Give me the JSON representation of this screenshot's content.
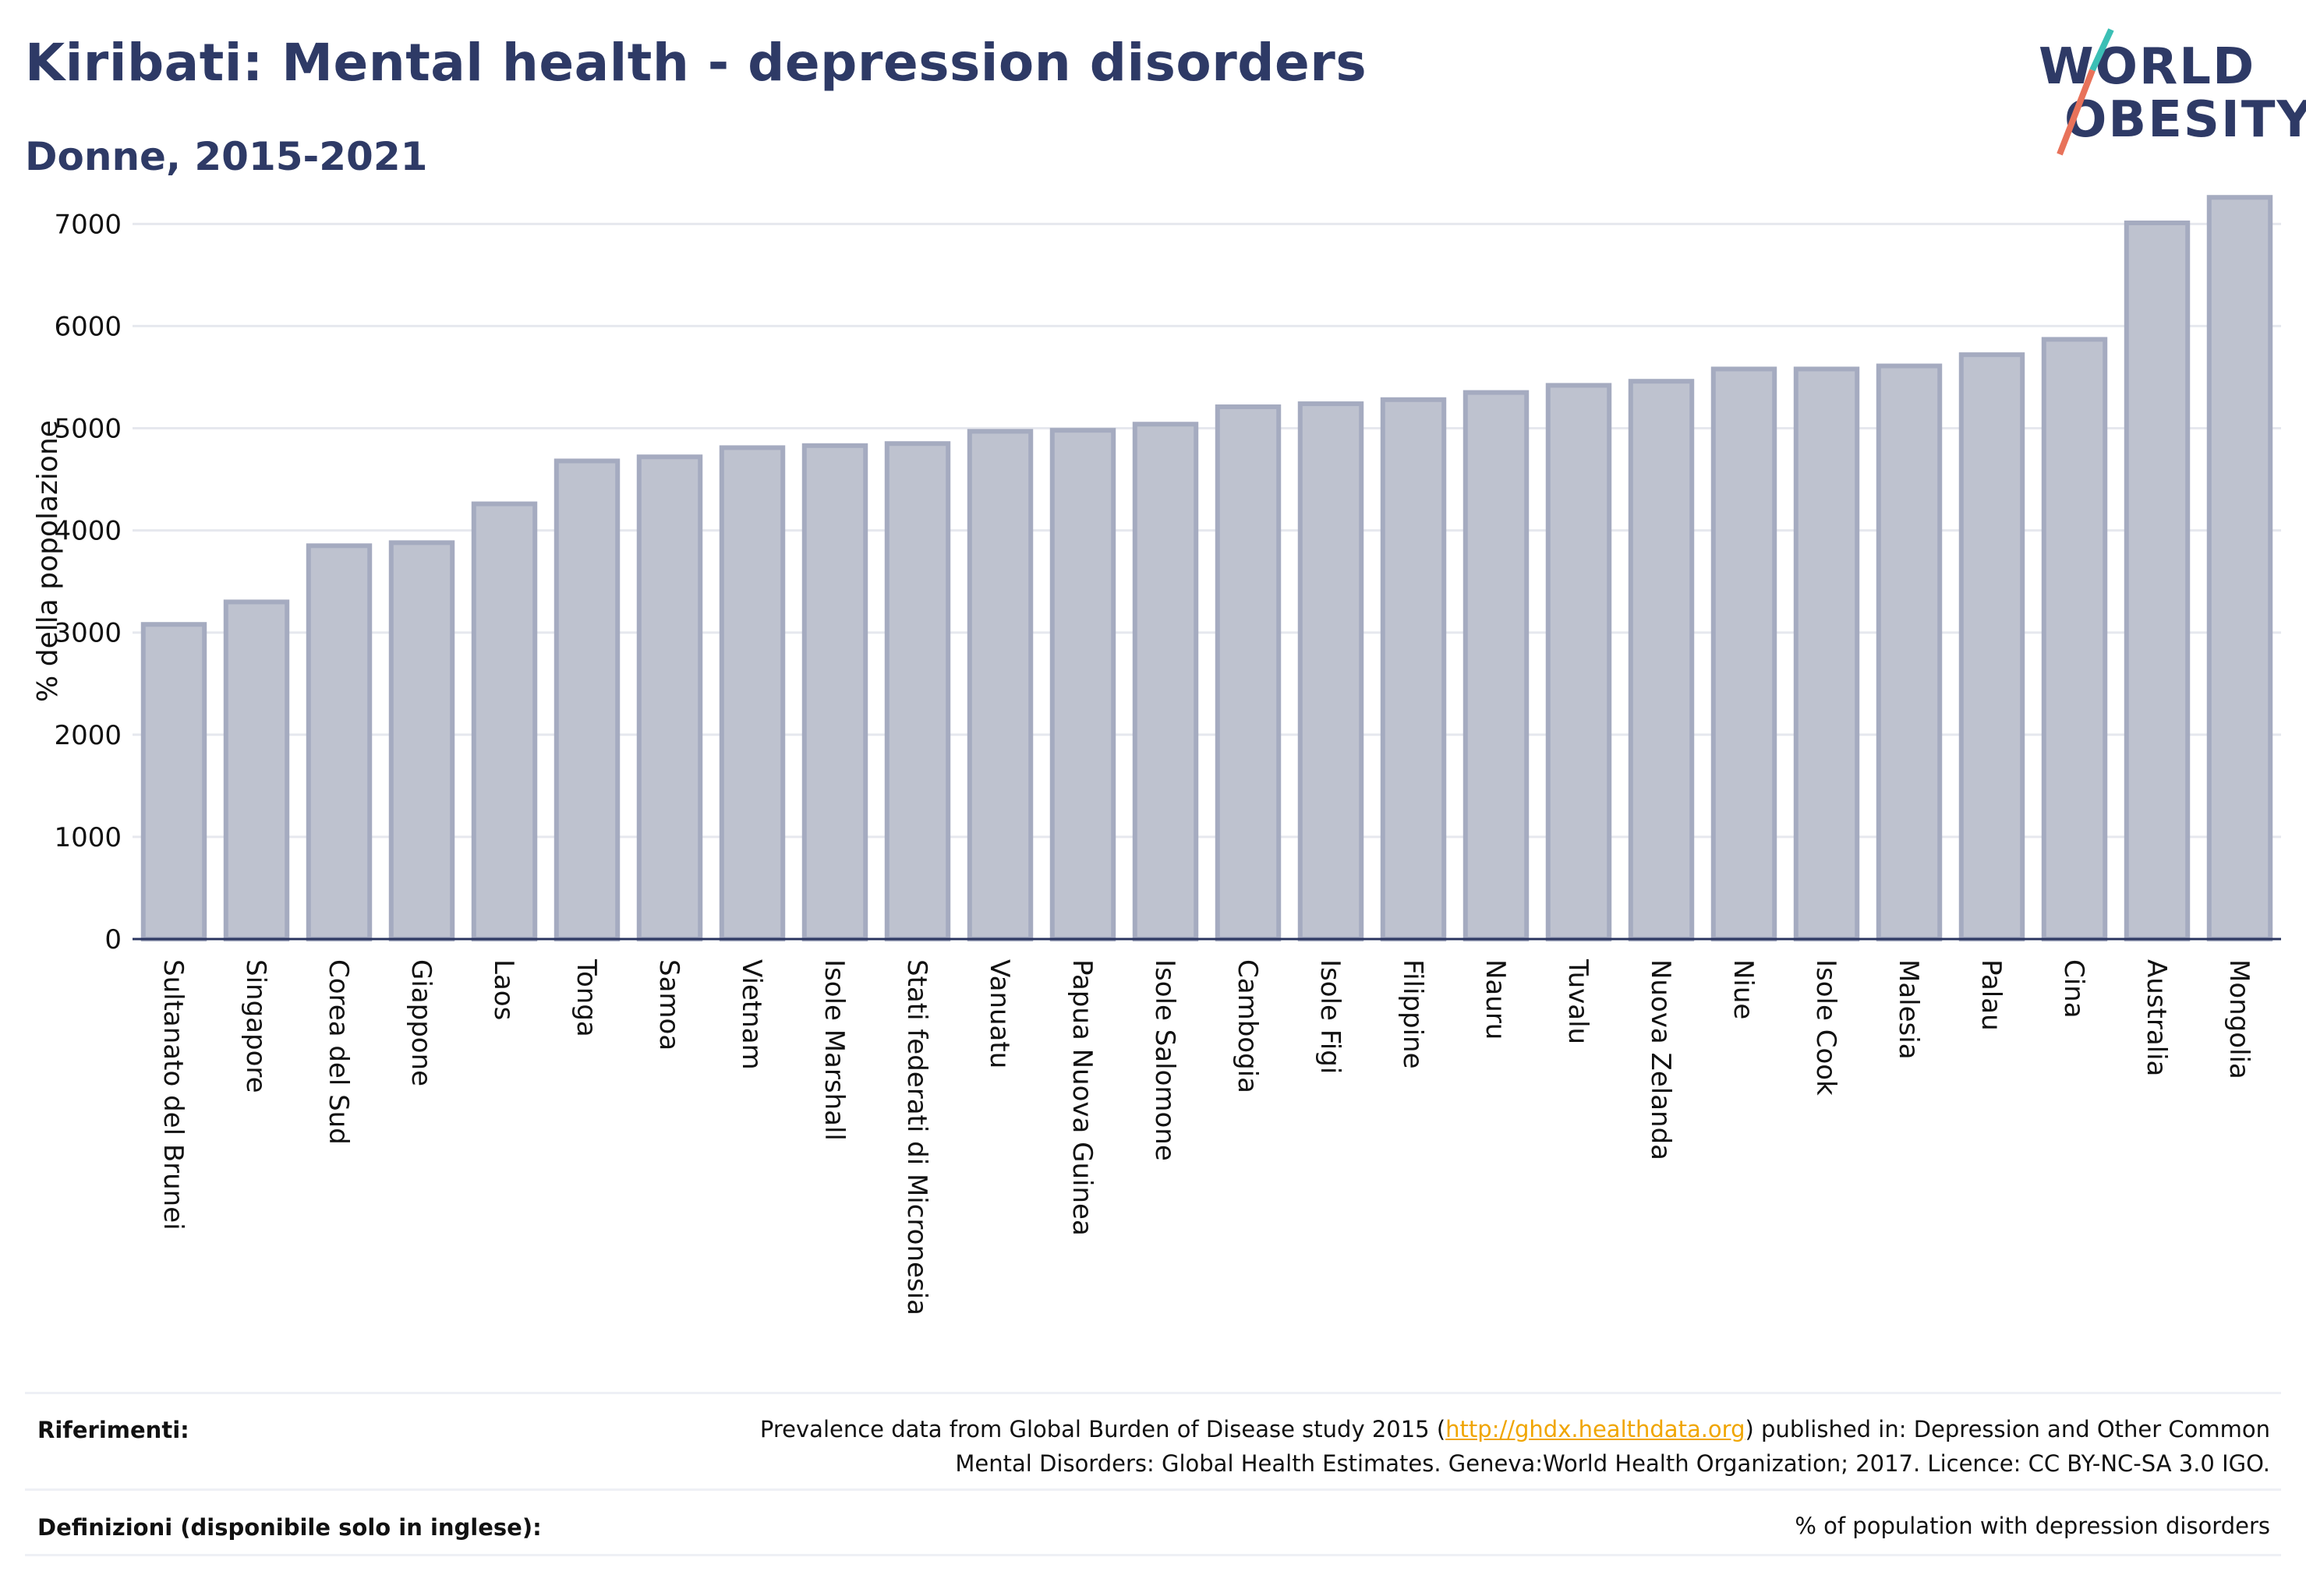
{
  "header": {
    "title": "Kiribati: Mental health - depression disorders",
    "subtitle": "Donne, 2015-2021"
  },
  "logo": {
    "line1": "WORLD",
    "line2": "OBESITY",
    "colors": {
      "text": "#2e3a66",
      "slash_top": "#3bbfb5",
      "slash_bottom": "#e8725a"
    }
  },
  "chart_data": {
    "type": "bar",
    "ylabel": "% della popolazione",
    "ylim": [
      0,
      7300
    ],
    "yticks": [
      0,
      1000,
      2000,
      3000,
      4000,
      5000,
      6000,
      7000
    ],
    "grid": true,
    "bar_color": "#bec2cf",
    "bar_edge_color": "#a5abc0",
    "categories": [
      "Sultanato del Brunei",
      "Singapore",
      "Corea del Sud",
      "Giappone",
      "Laos",
      "Tonga",
      "Samoa",
      "Vietnam",
      "Isole Marshall",
      "Stati federati di Micronesia",
      "Vanuatu",
      "Papua Nuova Guinea",
      "Isole Salomone",
      "Cambogia",
      "Isole Figi",
      "Filippine",
      "Nauru",
      "Tuvalu",
      "Nuova Zelanda",
      "Niue",
      "Isole Cook",
      "Malesia",
      "Palau",
      "Cina",
      "Australia",
      "Mongolia"
    ],
    "values": [
      3080,
      3300,
      3850,
      3880,
      4260,
      4680,
      4720,
      4810,
      4830,
      4850,
      4970,
      4980,
      5040,
      5210,
      5240,
      5280,
      5350,
      5420,
      5460,
      5580,
      5580,
      5610,
      5720,
      5870,
      7010,
      7260
    ]
  },
  "footer": {
    "references_label": "Riferimenti:",
    "references_pre": "Prevalence data from Global Burden of Disease study 2015 (",
    "references_link": "http://ghdx.healthdata.org",
    "references_post": ") published in: Depression and Other Common",
    "references_line2": "Mental Disorders: Global Health Estimates. Geneva:World Health Organization; 2017. Licence: CC BY-NC-SA 3.0 IGO.",
    "definitions_label": "Definizioni (disponibile solo in inglese):",
    "definitions_text": "% of population with depression disorders"
  }
}
